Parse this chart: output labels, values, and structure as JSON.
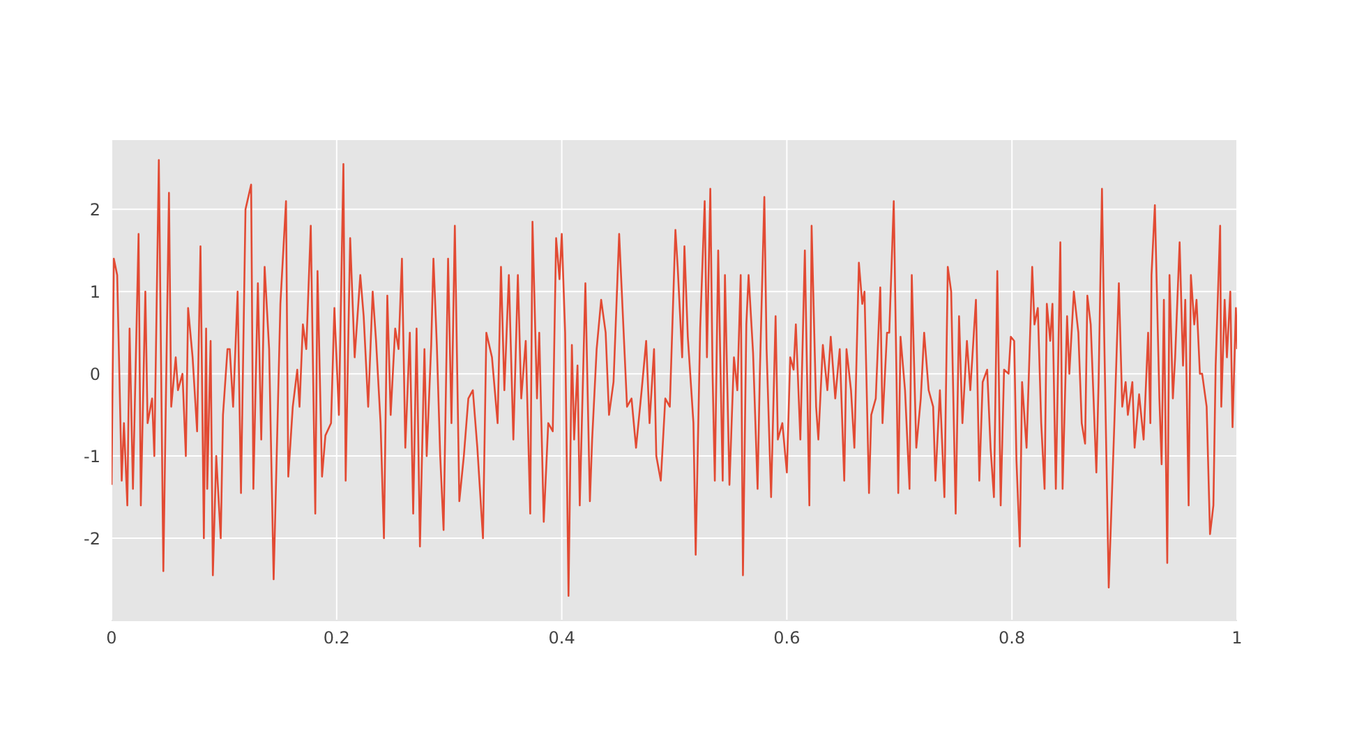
{
  "chart_data": {
    "type": "line",
    "xlim": [
      0,
      1
    ],
    "xticks": [
      0,
      0.2,
      0.4,
      0.6,
      0.8,
      1
    ],
    "ylim": [
      -3,
      2.85
    ],
    "yticks": [
      -2,
      -1,
      0,
      1,
      2
    ],
    "grid": true,
    "legend": false,
    "marker": "none",
    "line_style": "solid",
    "x": [
      0,
      0.002,
      0.005,
      0.009,
      0.011,
      0.014,
      0.016,
      0.019,
      0.024,
      0.026,
      0.03,
      0.032,
      0.036,
      0.038,
      0.042,
      0.046,
      0.051,
      0.053,
      0.057,
      0.059,
      0.063,
      0.066,
      0.068,
      0.072,
      0.076,
      0.079,
      0.082,
      0.084,
      0.085,
      0.088,
      0.09,
      0.093,
      0.097,
      0.099,
      0.103,
      0.105,
      0.108,
      0.112,
      0.115,
      0.119,
      0.124,
      0.126,
      0.13,
      0.133,
      0.136,
      0.14,
      0.144,
      0.146,
      0.15,
      0.155,
      0.157,
      0.161,
      0.165,
      0.167,
      0.17,
      0.173,
      0.177,
      0.181,
      0.183,
      0.187,
      0.19,
      0.195,
      0.198,
      0.202,
      0.206,
      0.208,
      0.212,
      0.216,
      0.221,
      0.224,
      0.228,
      0.232,
      0.235,
      0.239,
      0.242,
      0.245,
      0.248,
      0.252,
      0.255,
      0.258,
      0.261,
      0.265,
      0.268,
      0.271,
      0.274,
      0.278,
      0.28,
      0.284,
      0.286,
      0.289,
      0.292,
      0.295,
      0.299,
      0.302,
      0.305,
      0.309,
      0.313,
      0.317,
      0.321,
      0.325,
      0.33,
      0.333,
      0.338,
      0.343,
      0.346,
      0.349,
      0.353,
      0.357,
      0.361,
      0.364,
      0.368,
      0.372,
      0.374,
      0.378,
      0.38,
      0.384,
      0.388,
      0.392,
      0.395,
      0.398,
      0.4,
      0.403,
      0.406,
      0.409,
      0.411,
      0.414,
      0.416,
      0.421,
      0.425,
      0.427,
      0.431,
      0.435,
      0.439,
      0.442,
      0.446,
      0.451,
      0.455,
      0.458,
      0.462,
      0.466,
      0.471,
      0.475,
      0.478,
      0.482,
      0.484,
      0.488,
      0.492,
      0.496,
      0.501,
      0.503,
      0.507,
      0.509,
      0.512,
      0.517,
      0.519,
      0.523,
      0.527,
      0.529,
      0.532,
      0.534,
      0.536,
      0.539,
      0.543,
      0.545,
      0.549,
      0.553,
      0.556,
      0.559,
      0.561,
      0.564,
      0.566,
      0.57,
      0.574,
      0.576,
      0.58,
      0.582,
      0.586,
      0.59,
      0.592,
      0.596,
      0.6,
      0.603,
      0.606,
      0.608,
      0.612,
      0.616,
      0.62,
      0.622,
      0.626,
      0.628,
      0.632,
      0.636,
      0.639,
      0.643,
      0.647,
      0.651,
      0.653,
      0.657,
      0.66,
      0.664,
      0.667,
      0.669,
      0.673,
      0.675,
      0.679,
      0.683,
      0.685,
      0.689,
      0.691,
      0.695,
      0.699,
      0.701,
      0.705,
      0.709,
      0.711,
      0.715,
      0.719,
      0.722,
      0.726,
      0.73,
      0.732,
      0.736,
      0.74,
      0.743,
      0.746,
      0.75,
      0.753,
      0.756,
      0.76,
      0.763,
      0.768,
      0.771,
      0.774,
      0.778,
      0.781,
      0.784,
      0.787,
      0.79,
      0.793,
      0.797,
      0.799,
      0.802,
      0.804,
      0.807,
      0.809,
      0.813,
      0.818,
      0.82,
      0.823,
      0.826,
      0.829,
      0.831,
      0.834,
      0.836,
      0.839,
      0.843,
      0.845,
      0.849,
      0.851,
      0.855,
      0.859,
      0.862,
      0.865,
      0.867,
      0.87,
      0.875,
      0.877,
      0.88,
      0.882,
      0.886,
      0.891,
      0.895,
      0.898,
      0.901,
      0.903,
      0.907,
      0.909,
      0.913,
      0.917,
      0.921,
      0.923,
      0.924,
      0.927,
      0.931,
      0.933,
      0.935,
      0.938,
      0.94,
      0.943,
      0.945,
      0.949,
      0.952,
      0.954,
      0.957,
      0.959,
      0.962,
      0.964,
      0.967,
      0.969,
      0.973,
      0.976,
      0.979,
      0.981,
      0.985,
      0.986,
      0.989,
      0.991,
      0.994,
      0.996,
      0.999,
      1
    ],
    "series": [
      {
        "color": "#e24a33",
        "values": [
          -1.35,
          1.4,
          1.2,
          -1.3,
          -0.6,
          -1.6,
          0.55,
          -1.4,
          1.7,
          -1.6,
          1.0,
          -0.6,
          -0.3,
          -1.0,
          2.6,
          -2.4,
          2.2,
          -0.4,
          0.2,
          -0.2,
          0,
          -1.0,
          0.8,
          0.2,
          -0.7,
          1.55,
          -2.0,
          0.55,
          -1.4,
          0.4,
          -2.45,
          -1.0,
          -2.0,
          -0.5,
          0.3,
          0.3,
          -0.4,
          1.0,
          -1.45,
          2.0,
          2.3,
          -1.4,
          1.1,
          -0.8,
          1.3,
          0.3,
          -2.5,
          -1.4,
          0.85,
          2.1,
          -1.25,
          -0.4,
          0.05,
          -0.4,
          0.6,
          0.3,
          1.8,
          -1.7,
          1.25,
          -1.25,
          -0.75,
          -0.6,
          0.8,
          -0.5,
          2.55,
          -1.3,
          1.65,
          0.2,
          1.2,
          0.7,
          -0.4,
          1.0,
          0.4,
          -0.6,
          -2.0,
          0.95,
          -0.5,
          0.55,
          0.3,
          1.4,
          -0.9,
          0.5,
          -1.7,
          0.55,
          -2.1,
          0.3,
          -1.0,
          0.35,
          1.4,
          0.35,
          -1.0,
          -1.9,
          1.4,
          -0.6,
          1.8,
          -1.55,
          -1.0,
          -0.3,
          -0.2,
          -0.9,
          -2.0,
          0.5,
          0.2,
          -0.6,
          1.3,
          -0.2,
          1.2,
          -0.8,
          1.2,
          -0.3,
          0.4,
          -1.7,
          1.85,
          -0.3,
          0.5,
          -1.8,
          -0.6,
          -0.7,
          1.65,
          1.15,
          1.7,
          0.5,
          -2.7,
          0.35,
          -0.8,
          0.1,
          -1.6,
          1.1,
          -1.55,
          -0.8,
          0.3,
          0.9,
          0.5,
          -0.5,
          -0.1,
          1.7,
          0.5,
          -0.4,
          -0.3,
          -0.9,
          -0.2,
          0.4,
          -0.6,
          0.3,
          -1.0,
          -1.3,
          -0.3,
          -0.4,
          1.75,
          1.3,
          0.2,
          1.55,
          0.45,
          -0.6,
          -2.2,
          0.55,
          2.1,
          0.2,
          2.25,
          0,
          -1.3,
          1.5,
          -1.3,
          1.2,
          -1.35,
          0.2,
          -0.2,
          1.2,
          -2.45,
          0.6,
          1.2,
          0.25,
          -1.4,
          0,
          2.15,
          0.3,
          -1.5,
          0.7,
          -0.8,
          -0.6,
          -1.2,
          0.2,
          0.05,
          0.6,
          -0.8,
          1.5,
          -1.6,
          1.8,
          -0.4,
          -0.8,
          0.35,
          -0.2,
          0.45,
          -0.3,
          0.3,
          -1.3,
          0.3,
          -0.2,
          -0.9,
          1.35,
          0.85,
          1.0,
          -1.45,
          -0.5,
          -0.3,
          1.05,
          -0.6,
          0.5,
          0.5,
          2.1,
          -1.45,
          0.45,
          -0.2,
          -1.4,
          1.2,
          -0.9,
          -0.3,
          0.5,
          -0.2,
          -0.4,
          -1.3,
          -0.2,
          -1.5,
          1.3,
          1.0,
          -1.7,
          0.7,
          -0.6,
          0.4,
          -0.2,
          0.9,
          -1.3,
          -0.1,
          0.05,
          -0.9,
          -1.5,
          1.25,
          -1.6,
          0.05,
          0,
          0.45,
          0.4,
          -1.05,
          -2.1,
          -0.1,
          -0.9,
          1.3,
          0.6,
          0.8,
          -0.6,
          -1.4,
          0.85,
          0.4,
          0.85,
          -1.4,
          1.6,
          -1.4,
          0.7,
          0,
          1.0,
          0.5,
          -0.6,
          -0.85,
          0.95,
          0.6,
          -1.2,
          -0.1,
          2.25,
          0.45,
          -2.6,
          -0.6,
          1.1,
          -0.4,
          -0.1,
          -0.5,
          -0.1,
          -0.9,
          -0.25,
          -0.8,
          0.5,
          -0.6,
          1.2,
          2.05,
          -0.3,
          -1.1,
          0.9,
          -2.3,
          1.2,
          -0.3,
          0.2,
          1.6,
          0.1,
          0.9,
          -1.6,
          1.2,
          0.6,
          0.9,
          0,
          0,
          -0.4,
          -1.95,
          -1.6,
          0.1,
          1.8,
          -0.4,
          0.9,
          0.2,
          1.0,
          -0.65,
          0.8,
          0.3
        ]
      }
    ]
  }
}
